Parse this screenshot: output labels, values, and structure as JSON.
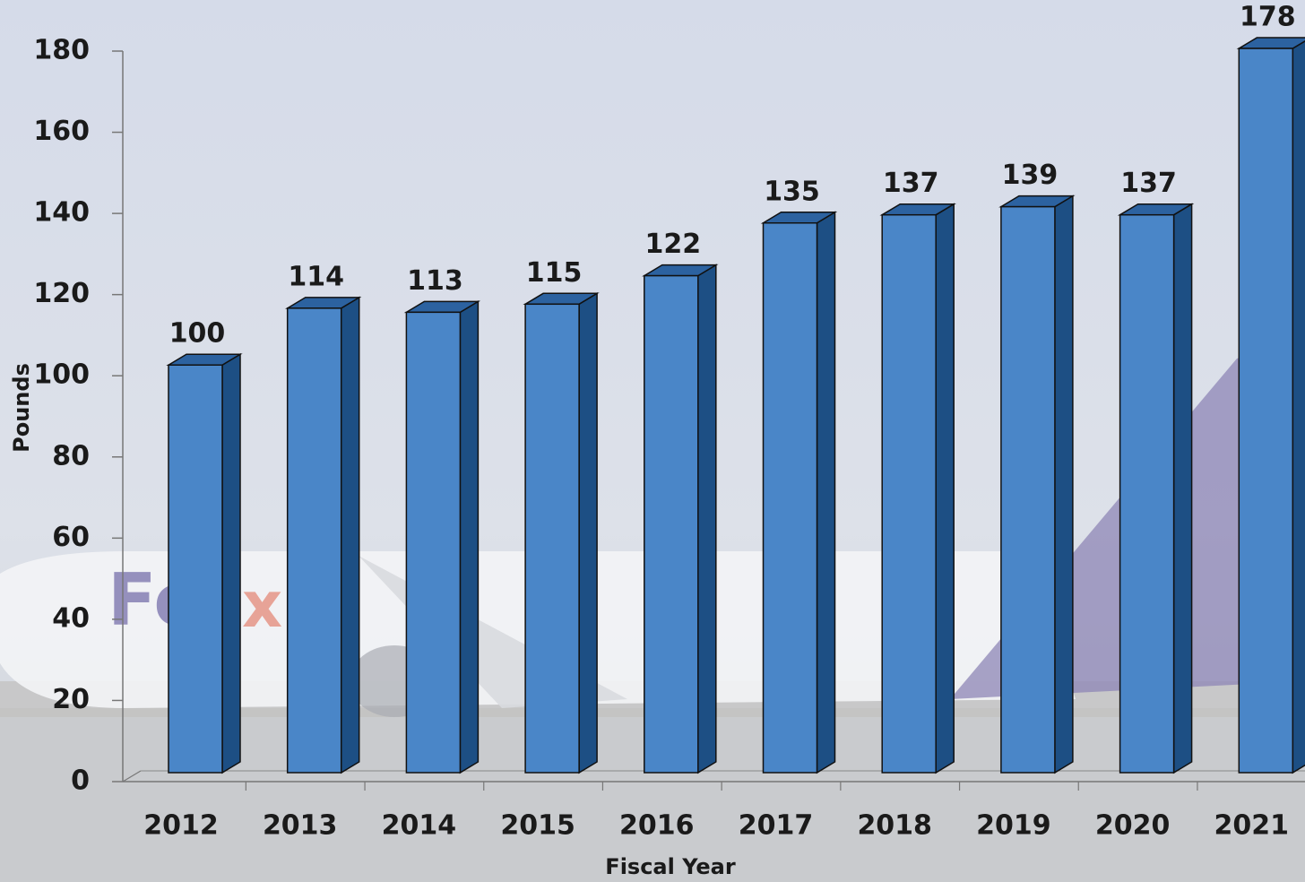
{
  "chart_data": {
    "type": "bar",
    "categories": [
      "2012",
      "2013",
      "2014",
      "2015",
      "2016",
      "2017",
      "2018",
      "2019",
      "2020",
      "2021"
    ],
    "values": [
      100,
      114,
      113,
      115,
      122,
      135,
      137,
      139,
      137,
      178
    ],
    "color": "#4a86c8",
    "ylim": [
      0,
      180
    ],
    "yticks": [
      0,
      20,
      40,
      60,
      80,
      100,
      120,
      140,
      160,
      180
    ],
    "xlabel": "Fiscal Year",
    "ylabel": "Pounds"
  }
}
